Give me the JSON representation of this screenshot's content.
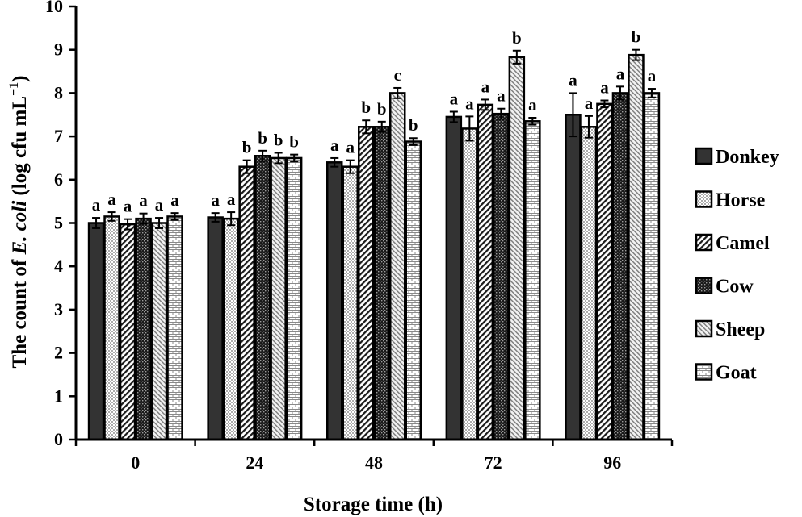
{
  "chart_data": {
    "type": "bar",
    "xlabel": "Storage time (h)",
    "ylabel_parts": {
      "prefix": "The count of ",
      "italic": "E. coli",
      "suffix": " (log cfu mL",
      "superscript": "−1",
      "close": ")"
    },
    "ylim": [
      0,
      10
    ],
    "yticks": [
      "0",
      "1",
      "2",
      "3",
      "4",
      "5",
      "6",
      "7",
      "8",
      "9",
      "10"
    ],
    "categories": [
      "0",
      "24",
      "48",
      "72",
      "96"
    ],
    "legend_position": "right",
    "series": [
      {
        "name": "Donkey",
        "values": [
          5.0,
          5.13,
          6.4,
          7.45,
          7.5
        ],
        "errors": [
          0.12,
          0.1,
          0.1,
          0.12,
          0.5
        ],
        "labels": [
          "a",
          "a",
          "a",
          "a",
          "a"
        ],
        "color": "#333333",
        "pattern": "solid"
      },
      {
        "name": "Horse",
        "values": [
          5.15,
          5.1,
          6.3,
          7.18,
          7.22
        ],
        "errors": [
          0.1,
          0.15,
          0.15,
          0.28,
          0.25
        ],
        "labels": [
          "a",
          "a",
          "a",
          "a",
          "a"
        ],
        "color": "#8c8c8c",
        "pattern": "dots"
      },
      {
        "name": "Camel",
        "values": [
          4.97,
          6.3,
          7.22,
          7.73,
          7.75
        ],
        "errors": [
          0.12,
          0.15,
          0.15,
          0.12,
          0.08
        ],
        "labels": [
          "a",
          "b",
          "b",
          "a",
          "a"
        ],
        "color": "#ffffff",
        "pattern": "diagonal"
      },
      {
        "name": "Cow",
        "values": [
          5.1,
          6.55,
          7.22,
          7.52,
          8.0
        ],
        "errors": [
          0.12,
          0.12,
          0.12,
          0.12,
          0.15
        ],
        "labels": [
          "a",
          "b",
          "b",
          "a",
          "a"
        ],
        "color": "#222222",
        "pattern": "checker"
      },
      {
        "name": "Sheep",
        "values": [
          5.0,
          6.5,
          8.0,
          8.83,
          8.88
        ],
        "errors": [
          0.12,
          0.12,
          0.12,
          0.15,
          0.12
        ],
        "labels": [
          "a",
          "b",
          "c",
          "b",
          "b"
        ],
        "color": "#ffffff",
        "pattern": "hatch"
      },
      {
        "name": "Goat",
        "values": [
          5.15,
          6.5,
          6.88,
          7.35,
          8.0
        ],
        "errors": [
          0.08,
          0.08,
          0.08,
          0.08,
          0.1
        ],
        "labels": [
          "a",
          "b",
          "b",
          "a",
          "a"
        ],
        "color": "#ffffff",
        "pattern": "brick"
      }
    ]
  }
}
